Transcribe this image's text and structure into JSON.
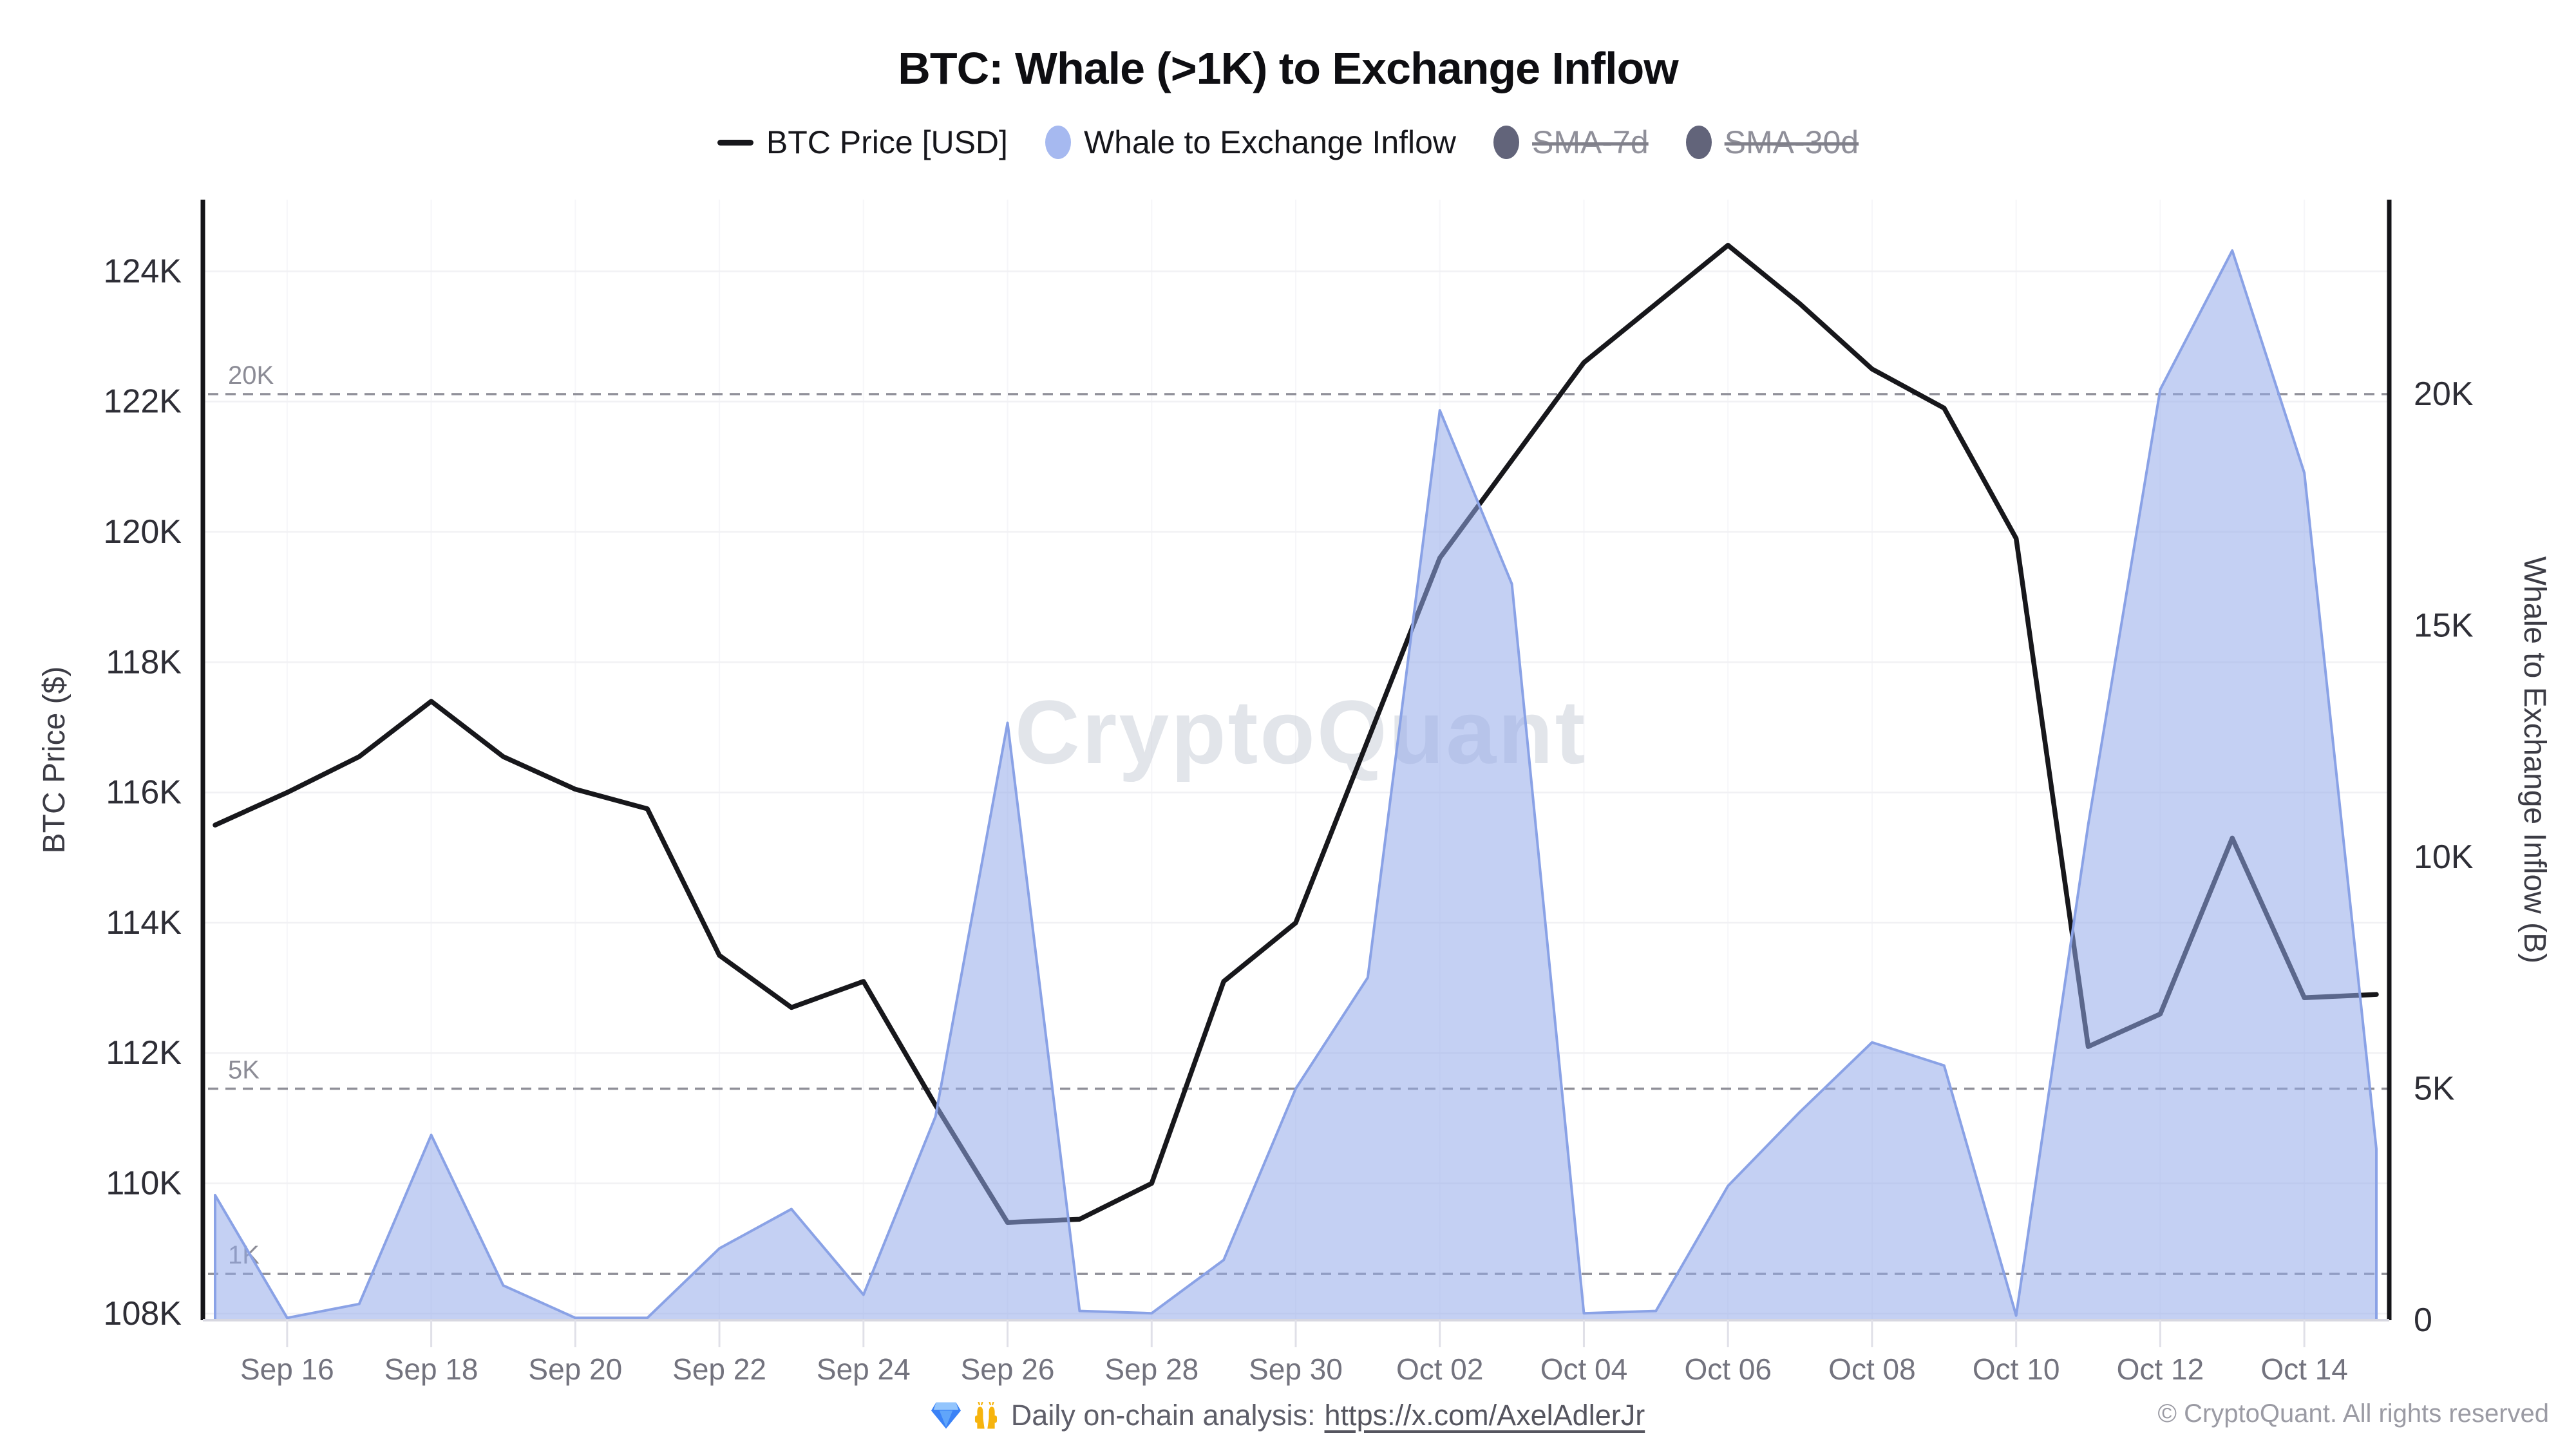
{
  "title": "BTC: Whale (>1K) to Exchange Inflow",
  "legend": [
    {
      "label": "BTC Price [USD]",
      "marker": "line",
      "color": "#17171b",
      "disabled": false
    },
    {
      "label": "Whale to Exchange Inflow",
      "marker": "dot",
      "color": "#a6b9f0",
      "disabled": false
    },
    {
      "label": "SMA-7d",
      "marker": "dot",
      "color": "#62647a",
      "disabled": true
    },
    {
      "label": "SMA-30d",
      "marker": "dot",
      "color": "#62647a",
      "disabled": true
    }
  ],
  "watermark": "CryptoQuant",
  "footer": {
    "note_prefix": "Daily on-chain analysis: ",
    "link_text": "https://x.com/AxelAdlerJr",
    "copyright": "© CryptoQuant. All rights reserved"
  },
  "chart_data": {
    "type": "line+area",
    "x": [
      "Sep 15",
      "Sep 16",
      "Sep 17",
      "Sep 18",
      "Sep 19",
      "Sep 20",
      "Sep 21",
      "Sep 22",
      "Sep 23",
      "Sep 24",
      "Sep 25",
      "Sep 26",
      "Sep 27",
      "Sep 28",
      "Sep 29",
      "Sep 30",
      "Oct 01",
      "Oct 02",
      "Oct 03",
      "Oct 04",
      "Oct 05",
      "Oct 06",
      "Oct 07",
      "Oct 08",
      "Oct 09",
      "Oct 10",
      "Oct 11",
      "Oct 12",
      "Oct 13",
      "Oct 14",
      "Oct 15"
    ],
    "x_tick_labels": [
      "Sep 16",
      "Sep 18",
      "Sep 20",
      "Sep 22",
      "Sep 24",
      "Sep 26",
      "Sep 28",
      "Sep 30",
      "Oct 02",
      "Oct 04",
      "Oct 06",
      "Oct 08",
      "Oct 10",
      "Oct 12",
      "Oct 14"
    ],
    "series": [
      {
        "name": "BTC Price [USD]",
        "type": "line",
        "axis": "left",
        "color": "#17171b",
        "values": [
          115.5,
          116.0,
          116.55,
          117.4,
          116.55,
          116.05,
          115.75,
          113.5,
          112.7,
          113.1,
          111.2,
          109.4,
          109.45,
          110.0,
          113.1,
          114.0,
          116.8,
          119.6,
          121.1,
          122.6,
          123.5,
          124.4,
          123.5,
          122.5,
          121.9,
          119.9,
          112.1,
          112.6,
          115.3,
          112.85,
          112.9
        ],
        "unit": "K USD"
      },
      {
        "name": "Whale to Exchange Inflow",
        "type": "area",
        "axis": "right",
        "fill": "#93aae9",
        "stroke": "#8aa2e6",
        "fill_opacity": 0.55,
        "values": [
          2.7,
          0.05,
          0.35,
          4.0,
          0.75,
          0.05,
          0.05,
          1.55,
          2.4,
          0.55,
          4.4,
          12.9,
          0.2,
          0.15,
          1.3,
          5.0,
          7.4,
          19.65,
          15.9,
          0.15,
          0.2,
          2.9,
          4.5,
          6.0,
          5.5,
          0.1,
          10.7,
          20.1,
          23.1,
          18.3,
          3.7
        ],
        "unit": "K BTC"
      }
    ],
    "disabled_series": [
      "SMA-7d",
      "SMA-30d"
    ],
    "left_axis": {
      "title": "BTC Price ($)",
      "min": 107.9,
      "max": 125.1,
      "ticks": [
        108,
        110,
        112,
        114,
        116,
        118,
        120,
        122,
        124
      ],
      "tick_suffix": "K"
    },
    "right_axis": {
      "title": "Whale to Exchange Inflow (B)",
      "min": 0,
      "max": 24.2,
      "ticks": [
        0,
        5,
        10,
        15,
        20
      ],
      "tick_suffix": "K"
    },
    "threshold_lines": [
      {
        "label": "20K",
        "value": 20
      },
      {
        "label": "5K",
        "value": 5
      },
      {
        "label": "1K",
        "value": 1
      }
    ],
    "grid": true,
    "legend_position": "top",
    "colors": {
      "grid": "#f1f1f4",
      "grid_vertical": "#f6f6f9",
      "axis": "#141418",
      "bottom_axis": "#d7d7e0",
      "dashed": "#8f8f98",
      "tick_label": "#2e2e36",
      "x_tick_label": "#73737e",
      "axis_title": "#3c3c45",
      "watermark_color": "#ccd0da",
      "threshold_label": "#8c8c96",
      "tick_mark": "#e0e0e8"
    }
  }
}
